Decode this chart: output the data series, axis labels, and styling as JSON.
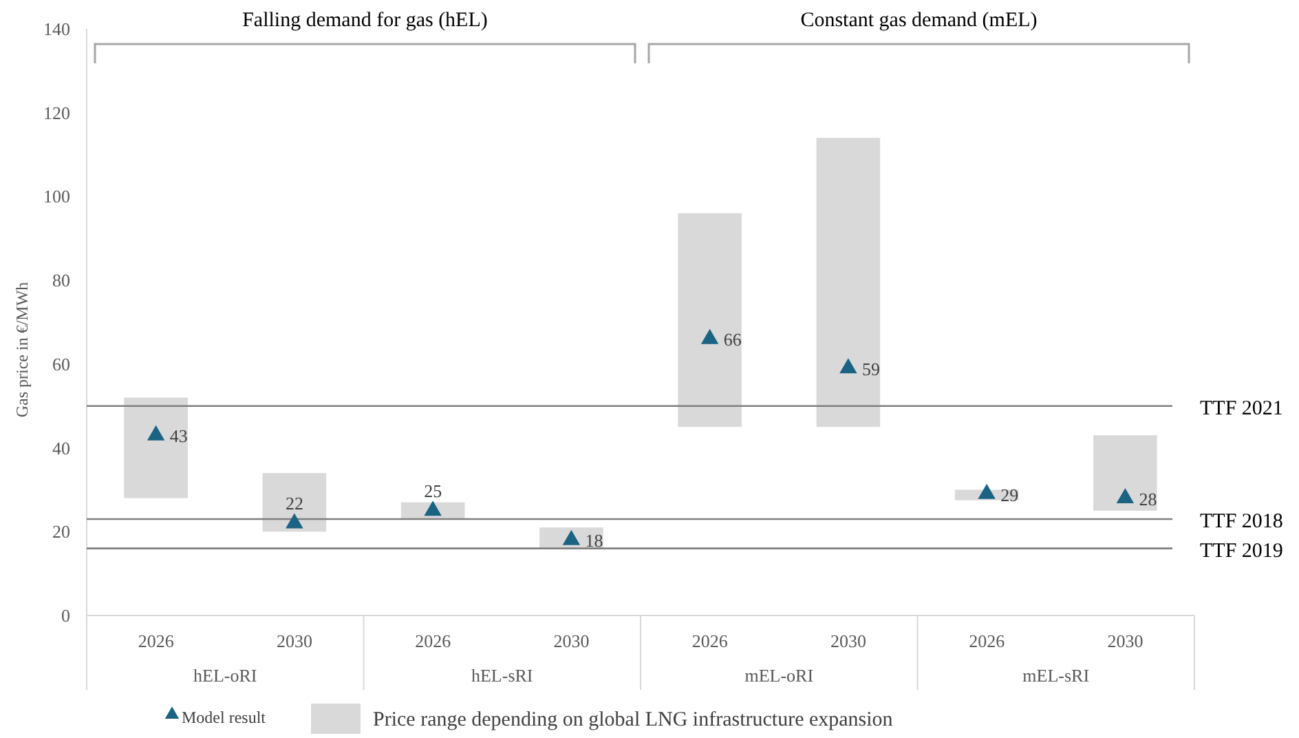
{
  "chart_data": {
    "type": "bar",
    "ylabel": "Gas price in €/MWh",
    "categories": [
      "2026",
      "2030",
      "2026",
      "2030",
      "2026",
      "2030",
      "2026",
      "2030"
    ],
    "ylim": [
      0,
      140
    ],
    "yticks": [
      0,
      20,
      40,
      60,
      80,
      100,
      120,
      140
    ],
    "grid": false,
    "legend": "bottom",
    "series": [
      {
        "name": "Price range depending on global LNG infrastructure expansion",
        "color": "#d9d9d9",
        "base": [
          28,
          20,
          23,
          16,
          45,
          45,
          27.5,
          25
        ],
        "values": [
          24,
          14,
          4,
          5,
          51,
          69,
          2.5,
          18
        ]
      },
      {
        "type": "scatter",
        "name": "Model result",
        "color": "#1b6383",
        "marker": "triangle",
        "values": [
          43,
          22,
          25,
          18,
          66,
          59,
          29,
          28
        ],
        "value_labels": [
          "43",
          "22",
          "25",
          "18",
          "66",
          "59",
          "29",
          "28"
        ]
      }
    ],
    "ref_lines": [
      {
        "axis": "y",
        "value": 50,
        "label": "TTF 2021",
        "color": "#7f7f7f"
      },
      {
        "axis": "y",
        "value": 23,
        "label": "TTF 2018",
        "color": "#7f7f7f"
      },
      {
        "axis": "y",
        "value": 16,
        "label": "TTF 2019",
        "color": "#7f7f7f"
      }
    ],
    "annotations": [
      "Falling demand for gas (hEL)",
      "Constant gas demand (mEL)",
      "hEL-oRI",
      "hEL-sRI",
      "mEL-oRI",
      "mEL-sRI"
    ]
  }
}
